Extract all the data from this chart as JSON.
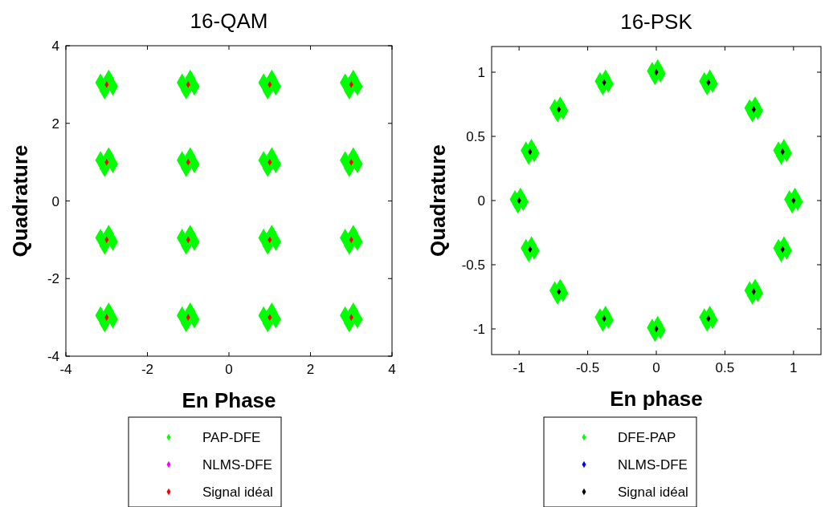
{
  "chart_data": [
    {
      "type": "scatter",
      "title": "16-QAM",
      "xlabel": "En Phase",
      "ylabel": "Quadrature",
      "xlim": [
        -4,
        4
      ],
      "ylim": [
        -4,
        4
      ],
      "xticks": [
        -4,
        -2,
        0,
        2,
        4
      ],
      "yticks": [
        -4,
        -2,
        0,
        2,
        4
      ],
      "marker": "diamond",
      "legend": "bottom",
      "grid": false,
      "series": [
        {
          "name": "PAP-DFE",
          "color": "#00ff00",
          "x": [
            -3.15,
            -2.85,
            -2.95,
            -3.05,
            -1.15,
            -0.85,
            -0.95,
            -1.05,
            0.85,
            1.15,
            1.05,
            0.95,
            2.85,
            3.15,
            3.05,
            2.95,
            -3.15,
            -2.85,
            -2.95,
            -3.05,
            -1.15,
            -0.85,
            -0.95,
            -1.05,
            0.85,
            1.15,
            1.05,
            0.95,
            2.85,
            3.15,
            3.05,
            2.95,
            -3.15,
            -2.85,
            -2.95,
            -3.05,
            -1.15,
            -0.85,
            -0.95,
            -1.05,
            0.85,
            1.15,
            1.05,
            0.95,
            2.85,
            3.15,
            3.05,
            2.95,
            -3.15,
            -2.85,
            -2.95,
            -3.05,
            -1.15,
            -0.85,
            -0.95,
            -1.05,
            0.85,
            1.15,
            1.05,
            0.95,
            2.85,
            3.15,
            3.05,
            2.95
          ],
          "values": [
            3.05,
            2.95,
            3.15,
            2.85,
            3.05,
            2.95,
            3.15,
            2.85,
            3.05,
            2.95,
            3.15,
            2.85,
            3.05,
            2.95,
            3.15,
            2.85,
            1.05,
            0.95,
            1.15,
            0.85,
            1.05,
            0.95,
            1.15,
            0.85,
            1.05,
            0.95,
            1.15,
            0.85,
            1.05,
            0.95,
            1.15,
            0.85,
            -0.95,
            -1.05,
            -0.85,
            -1.15,
            -0.95,
            -1.05,
            -0.85,
            -1.15,
            -0.95,
            -1.05,
            -0.85,
            -1.15,
            -0.95,
            -1.05,
            -0.85,
            -1.15,
            -2.95,
            -3.05,
            -2.85,
            -3.15,
            -2.95,
            -3.05,
            -2.85,
            -3.15,
            -2.95,
            -3.05,
            -2.85,
            -3.15,
            -2.95,
            -3.05,
            -2.85,
            -3.15
          ]
        },
        {
          "name": "NLMS-DFE",
          "color": "#ff00ff"
        },
        {
          "name": "Signal idéal",
          "color": "#ff0000",
          "x": [
            -3,
            -1,
            1,
            3,
            -3,
            -1,
            1,
            3,
            -3,
            -1,
            1,
            3,
            -3,
            -1,
            1,
            3
          ],
          "values": [
            3,
            3,
            3,
            3,
            1,
            1,
            1,
            1,
            -1,
            -1,
            -1,
            -1,
            -3,
            -3,
            -3,
            -3
          ]
        }
      ]
    },
    {
      "type": "scatter",
      "title": "16-PSK",
      "xlabel": "En phase",
      "ylabel": "Quadrature",
      "xlim": [
        -1.2,
        1.2
      ],
      "ylim": [
        -1.2,
        1.2
      ],
      "xticks": [
        -1,
        -0.5,
        0,
        0.5,
        1
      ],
      "yticks": [
        -1,
        -0.5,
        0,
        0.5,
        1
      ],
      "marker": "diamond",
      "legend": "bottom",
      "grid": false,
      "series": [
        {
          "name": "DFE-PAP",
          "color": "#00ff00",
          "x": [
            0.97,
            1.03,
            1.01,
            0.99,
            0.89,
            0.95,
            0.93,
            0.91,
            0.68,
            0.74,
            0.72,
            0.7,
            0.35,
            0.41,
            0.39,
            0.37,
            -0.03,
            0.03,
            0.01,
            -0.01,
            -0.41,
            -0.35,
            -0.37,
            -0.39,
            -0.74,
            -0.68,
            -0.7,
            -0.72,
            -0.95,
            -0.89,
            -0.91,
            -0.93,
            -1.03,
            -0.97,
            -0.99,
            -1.01,
            -0.95,
            -0.89,
            -0.91,
            -0.93,
            -0.74,
            -0.68,
            -0.7,
            -0.72,
            -0.41,
            -0.35,
            -0.37,
            -0.39,
            -0.03,
            0.03,
            0.01,
            -0.01,
            0.35,
            0.41,
            0.39,
            0.37,
            0.68,
            0.74,
            0.72,
            0.7,
            0.89,
            0.95,
            0.93,
            0.91
          ],
          "values": [
            0.01,
            -0.01,
            0.03,
            -0.03,
            0.39,
            0.37,
            0.41,
            0.35,
            0.72,
            0.7,
            0.74,
            0.68,
            0.93,
            0.91,
            0.95,
            0.89,
            1.01,
            0.99,
            1.03,
            0.97,
            0.93,
            0.91,
            0.95,
            0.89,
            0.72,
            0.7,
            0.74,
            0.68,
            0.39,
            0.37,
            0.41,
            0.35,
            0.01,
            -0.01,
            0.03,
            -0.03,
            -0.37,
            -0.39,
            -0.35,
            -0.41,
            -0.7,
            -0.72,
            -0.68,
            -0.74,
            -0.91,
            -0.93,
            -0.89,
            -0.95,
            -0.99,
            -1.01,
            -0.97,
            -1.03,
            -0.91,
            -0.93,
            -0.89,
            -0.95,
            -0.7,
            -0.72,
            -0.68,
            -0.74,
            -0.37,
            -0.39,
            -0.35,
            -0.41
          ]
        },
        {
          "name": "NLMS-DFE",
          "color": "#0000ff"
        },
        {
          "name": "Signal idéal",
          "color": "#000000",
          "x": [
            1,
            0.92,
            0.71,
            0.38,
            0,
            -0.38,
            -0.71,
            -0.92,
            -1,
            -0.92,
            -0.71,
            -0.38,
            0,
            0.38,
            0.71,
            0.92
          ],
          "values": [
            0,
            0.38,
            0.71,
            0.92,
            1,
            0.92,
            0.71,
            0.38,
            0,
            -0.38,
            -0.71,
            -0.92,
            -1,
            -0.92,
            -0.71,
            -0.38
          ]
        }
      ]
    }
  ]
}
